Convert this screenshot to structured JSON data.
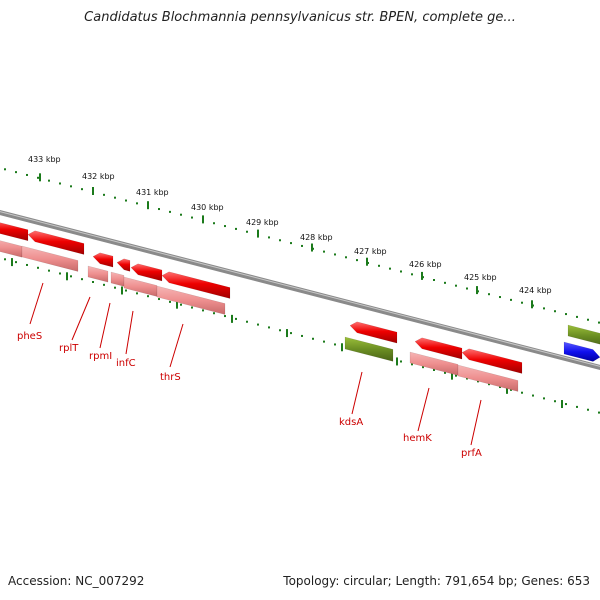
{
  "header": {
    "title": "Candidatus Blochmannia pennsylvanicus str. BPEN, complete ge..."
  },
  "footer": {
    "accession": "Accession: NC_007292",
    "summary": "Topology: circular; Length: 791,654 bp; Genes: 653"
  },
  "colors": {
    "backbone": "#8a8a8a",
    "tick": "#1b7a1b",
    "gene": "#ee0000",
    "gene_light": "#ee8f8f",
    "gene_label": "#cc0000",
    "olive": "#6b8e23",
    "blue": "#1010ee"
  },
  "scale": {
    "ticks": [
      "433 kbp",
      "432 kbp",
      "431 kbp",
      "430 kbp",
      "429 kbp",
      "428 kbp",
      "427 kbp",
      "426 kbp",
      "425 kbp",
      "424 kbp"
    ]
  },
  "genes": {
    "labels": [
      "pheS",
      "rplT",
      "rpmI",
      "infC",
      "thrS",
      "kdsA",
      "hemK",
      "prfA"
    ]
  }
}
